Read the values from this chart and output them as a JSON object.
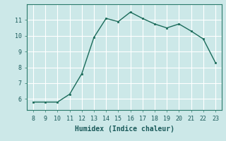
{
  "x": [
    8,
    9,
    10,
    11,
    12,
    13,
    14,
    15,
    16,
    17,
    18,
    19,
    20,
    21,
    22,
    23
  ],
  "y": [
    5.8,
    5.8,
    5.8,
    6.3,
    7.6,
    9.9,
    11.1,
    10.9,
    11.5,
    11.1,
    10.75,
    10.5,
    10.75,
    10.3,
    9.8,
    8.3
  ],
  "xlim": [
    7.5,
    23.5
  ],
  "ylim": [
    5.3,
    12.0
  ],
  "xticks": [
    8,
    9,
    10,
    11,
    12,
    13,
    14,
    15,
    16,
    17,
    18,
    19,
    20,
    21,
    22,
    23
  ],
  "yticks": [
    6,
    7,
    8,
    9,
    10,
    11
  ],
  "xlabel": "Humidex (Indice chaleur)",
  "line_color": "#1a6b5a",
  "marker_color": "#1a6b5a",
  "bg_color": "#cce8e8",
  "grid_color": "#b0d0d0",
  "tick_fontsize": 6.0,
  "xlabel_fontsize": 7.0
}
